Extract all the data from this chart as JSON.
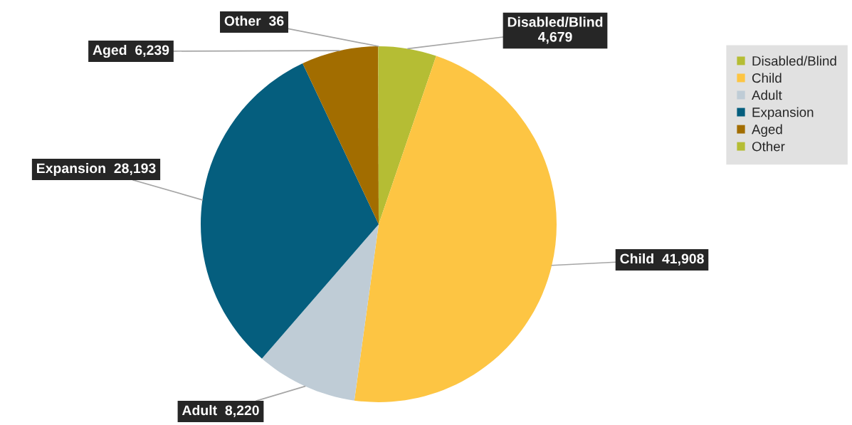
{
  "chart_data": {
    "type": "pie",
    "categories": [
      "Disabled/Blind",
      "Child",
      "Adult",
      "Expansion",
      "Aged",
      "Other"
    ],
    "values": [
      4679,
      41908,
      8220,
      28193,
      6239,
      36
    ],
    "value_labels": [
      "4,679",
      "41,908",
      "8,220",
      "28,193",
      "6,239",
      "36"
    ],
    "colors": [
      "#b5bd34",
      "#fdc543",
      "#bfccd6",
      "#055e7e",
      "#a26d00",
      "#b5bd34"
    ],
    "legend": "right"
  }
}
